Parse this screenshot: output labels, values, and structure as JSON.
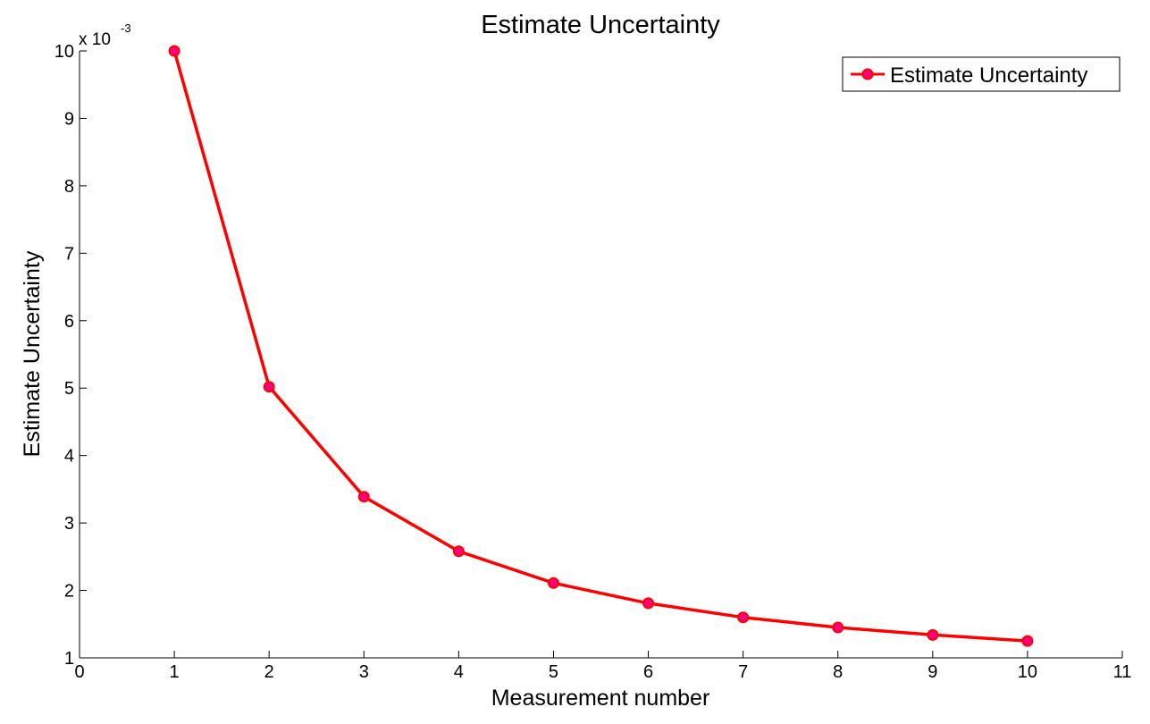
{
  "chart_data": {
    "type": "line",
    "title": "Estimate Uncertainty",
    "xlabel": "Measurement number",
    "ylabel": "Estimate Uncertainty",
    "y_multiplier": {
      "base": "x 10",
      "power": "-3"
    },
    "xlim": [
      0,
      11
    ],
    "ylim": [
      1,
      10
    ],
    "x_ticks": [
      "0",
      "1",
      "2",
      "3",
      "4",
      "5",
      "6",
      "7",
      "8",
      "9",
      "10",
      "11"
    ],
    "y_ticks": [
      "1",
      "2",
      "3",
      "4",
      "5",
      "6",
      "7",
      "8",
      "9",
      "10"
    ],
    "grid": false,
    "legend": {
      "position": "top-right",
      "entries": [
        "Estimate Uncertainty"
      ]
    },
    "series": [
      {
        "name": "Estimate Uncertainty",
        "color": "#ff0000",
        "marker_color": "#ff0080",
        "x": [
          1,
          2,
          3,
          4,
          5,
          6,
          7,
          8,
          9,
          10
        ],
        "y": [
          10.0,
          5.02,
          3.39,
          2.58,
          2.11,
          1.81,
          1.6,
          1.45,
          1.34,
          1.25
        ]
      }
    ]
  }
}
